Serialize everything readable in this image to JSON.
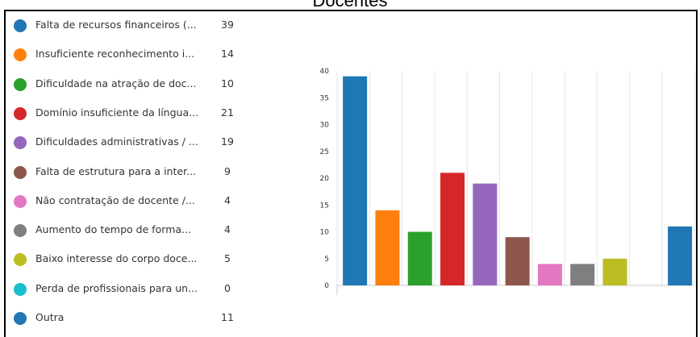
{
  "title": "Docentes",
  "legend": [
    {
      "label": "Falta de recursos financeiros (...",
      "count": "39",
      "color": "#1f77b4"
    },
    {
      "label": "Insuficiente reconhecimento i...",
      "count": "14",
      "color": "#ff7f0e"
    },
    {
      "label": "Dificuldade na atração de doc...",
      "count": "10",
      "color": "#2ca02c"
    },
    {
      "label": "Domínio insuficiente da língua...",
      "count": "21",
      "color": "#d62728"
    },
    {
      "label": "Dificuldades administrativas / ...",
      "count": "19",
      "color": "#9467bd"
    },
    {
      "label": "Falta de estrutura para a inter...",
      "count": "9",
      "color": "#8c564b"
    },
    {
      "label": "Não contratação de docente /...",
      "count": "4",
      "color": "#e377c2"
    },
    {
      "label": "Aumento do tempo de forma...",
      "count": "4",
      "color": "#7f7f7f"
    },
    {
      "label": "Baixo interesse do corpo doce...",
      "count": "5",
      "color": "#bcbd22"
    },
    {
      "label": "Perda de profissionais para un...",
      "count": "0",
      "color": "#17becf"
    },
    {
      "label": "Outra",
      "count": "11",
      "color": "#1f77b4"
    }
  ],
  "chart_data": {
    "type": "bar",
    "title": "Docentes",
    "categories": [
      "Falta de recursos financeiros (...",
      "Insuficiente reconhecimento i...",
      "Dificuldade na atração de doc...",
      "Domínio insuficiente da língua...",
      "Dificuldades administrativas / ...",
      "Falta de estrutura para a inter...",
      "Não contratação de docente /...",
      "Aumento do tempo de forma...",
      "Baixo interesse do corpo doce...",
      "Perda de profissionais para un...",
      "Outra"
    ],
    "values": [
      39,
      14,
      10,
      21,
      19,
      9,
      4,
      4,
      5,
      0,
      11
    ],
    "colors": [
      "#1f77b4",
      "#ff7f0e",
      "#2ca02c",
      "#d62728",
      "#9467bd",
      "#8c564b",
      "#e377c2",
      "#7f7f7f",
      "#bcbd22",
      "#17becf",
      "#1f77b4"
    ],
    "yticks": [
      "0",
      "5",
      "10",
      "15",
      "20",
      "25",
      "30",
      "35",
      "40"
    ],
    "ylim": [
      0,
      40
    ],
    "grid": true,
    "legend": "left"
  }
}
